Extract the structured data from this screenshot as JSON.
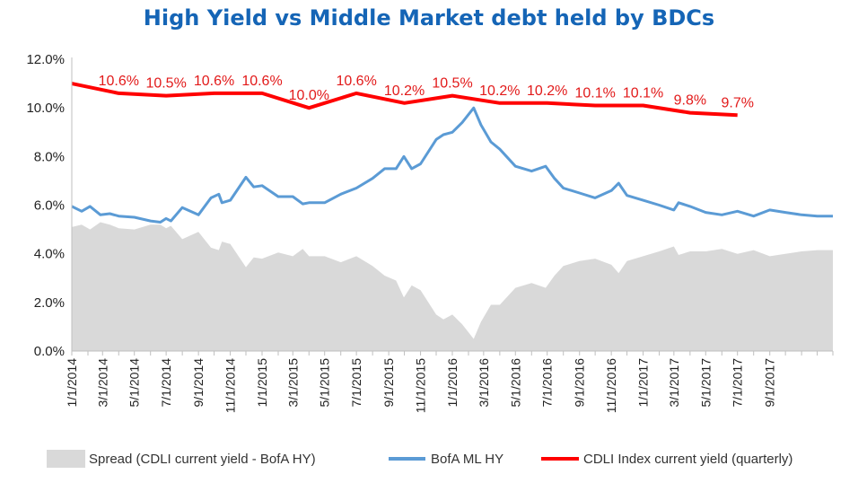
{
  "chart_data": {
    "type": "line",
    "title": "High Yield  vs  Middle Market debt held by BDCs",
    "xlabel": "",
    "ylabel": "",
    "x_range": [
      "2014-01-01",
      "2017-12-31"
    ],
    "ylim": [
      0.0,
      12.0
    ],
    "y_ticks": [
      "0.0%",
      "2.0%",
      "4.0%",
      "6.0%",
      "8.0%",
      "10.0%",
      "12.0%"
    ],
    "x_ticks": [
      "1/1/2014",
      "3/1/2014",
      "5/1/2014",
      "7/1/2014",
      "9/1/2014",
      "11/1/2014",
      "1/1/2015",
      "3/1/2015",
      "5/1/2015",
      "7/1/2015",
      "9/1/2015",
      "11/1/2015",
      "1/1/2016",
      "3/1/2016",
      "5/1/2016",
      "7/1/2016",
      "9/1/2016",
      "11/1/2016",
      "1/1/2017",
      "3/1/2017",
      "5/1/2017",
      "7/1/2017",
      "9/1/2017"
    ],
    "grid": false,
    "legend_position": "bottom",
    "series": [
      {
        "name": "CDLI Index current yield (quarterly)",
        "type": "line",
        "color": "#ff0000",
        "x": [
          "2014-01-01",
          "2014-04-01",
          "2014-07-01",
          "2014-10-01",
          "2015-01-01",
          "2015-04-01",
          "2015-07-01",
          "2015-10-01",
          "2016-01-01",
          "2016-04-01",
          "2016-07-01",
          "2016-10-01",
          "2017-01-01",
          "2017-04-01",
          "2017-07-01"
        ],
        "values": [
          11.0,
          10.6,
          10.5,
          10.6,
          10.6,
          10.0,
          10.6,
          10.2,
          10.5,
          10.2,
          10.2,
          10.1,
          10.1,
          9.8,
          9.7
        ],
        "labels": [
          "",
          "10.6%",
          "10.5%",
          "10.6%",
          "10.6%",
          "10.0%",
          "10.6%",
          "10.2%",
          "10.5%",
          "10.2%",
          "10.2%",
          "10.1%",
          "10.1%",
          "9.8%",
          "9.7%"
        ]
      },
      {
        "name": "BofA ML HY",
        "type": "line",
        "color": "#5b9bd5",
        "x": [
          "2014-01-01",
          "2014-01-20",
          "2014-02-05",
          "2014-02-25",
          "2014-03-15",
          "2014-04-01",
          "2014-05-01",
          "2014-06-01",
          "2014-06-20",
          "2014-07-01",
          "2014-07-10",
          "2014-08-01",
          "2014-09-01",
          "2014-09-25",
          "2014-10-10",
          "2014-10-16",
          "2014-11-01",
          "2014-12-01",
          "2014-12-16",
          "2015-01-01",
          "2015-02-01",
          "2015-03-01",
          "2015-03-20",
          "2015-04-01",
          "2015-05-01",
          "2015-06-01",
          "2015-07-01",
          "2015-08-01",
          "2015-08-24",
          "2015-09-15",
          "2015-09-30",
          "2015-10-15",
          "2015-11-01",
          "2015-12-01",
          "2015-12-15",
          "2016-01-01",
          "2016-01-20",
          "2016-02-11",
          "2016-02-25",
          "2016-03-15",
          "2016-04-01",
          "2016-05-01",
          "2016-06-01",
          "2016-06-28",
          "2016-07-15",
          "2016-08-01",
          "2016-09-01",
          "2016-10-01",
          "2016-11-01",
          "2016-11-15",
          "2016-12-01",
          "2017-01-01",
          "2017-02-01",
          "2017-03-01",
          "2017-03-10",
          "2017-04-01",
          "2017-05-01",
          "2017-06-01",
          "2017-07-01",
          "2017-08-01",
          "2017-09-01",
          "2017-10-01",
          "2017-11-01",
          "2017-12-01",
          "2017-12-31"
        ],
        "values": [
          5.95,
          5.75,
          5.95,
          5.6,
          5.65,
          5.55,
          5.5,
          5.35,
          5.3,
          5.45,
          5.35,
          5.9,
          5.6,
          6.3,
          6.45,
          6.1,
          6.2,
          7.15,
          6.75,
          6.8,
          6.35,
          6.35,
          6.05,
          6.1,
          6.1,
          6.45,
          6.7,
          7.1,
          7.5,
          7.5,
          8.0,
          7.5,
          7.7,
          8.7,
          8.9,
          9.0,
          9.4,
          10.0,
          9.3,
          8.6,
          8.3,
          7.6,
          7.4,
          7.6,
          7.1,
          6.7,
          6.5,
          6.3,
          6.6,
          6.9,
          6.4,
          6.2,
          6.0,
          5.8,
          6.1,
          5.95,
          5.7,
          5.6,
          5.75,
          5.55,
          5.8,
          5.7,
          5.6,
          5.55,
          5.55
        ]
      },
      {
        "name": "Spread (CDLI current yield - BofA HY)",
        "type": "area",
        "color": "#d9d9d9",
        "x": [
          "2014-01-01",
          "2014-01-20",
          "2014-02-05",
          "2014-02-25",
          "2014-03-15",
          "2014-04-01",
          "2014-05-01",
          "2014-06-01",
          "2014-06-20",
          "2014-07-01",
          "2014-07-10",
          "2014-08-01",
          "2014-09-01",
          "2014-09-25",
          "2014-10-10",
          "2014-10-16",
          "2014-11-01",
          "2014-12-01",
          "2014-12-16",
          "2015-01-01",
          "2015-02-01",
          "2015-03-01",
          "2015-03-20",
          "2015-04-01",
          "2015-05-01",
          "2015-06-01",
          "2015-07-01",
          "2015-08-01",
          "2015-08-24",
          "2015-09-15",
          "2015-09-30",
          "2015-10-15",
          "2015-11-01",
          "2015-12-01",
          "2015-12-15",
          "2016-01-01",
          "2016-01-20",
          "2016-02-11",
          "2016-02-25",
          "2016-03-15",
          "2016-04-01",
          "2016-05-01",
          "2016-06-01",
          "2016-06-28",
          "2016-07-15",
          "2016-08-01",
          "2016-09-01",
          "2016-10-01",
          "2016-11-01",
          "2016-11-15",
          "2016-12-01",
          "2017-01-01",
          "2017-02-01",
          "2017-03-01",
          "2017-03-10",
          "2017-04-01",
          "2017-05-01",
          "2017-06-01",
          "2017-07-01",
          "2017-08-01",
          "2017-09-01",
          "2017-10-01",
          "2017-11-01",
          "2017-12-01",
          "2017-12-31"
        ],
        "values": [
          5.1,
          5.2,
          5.0,
          5.3,
          5.2,
          5.05,
          5.0,
          5.2,
          5.2,
          5.05,
          5.15,
          4.6,
          4.9,
          4.25,
          4.15,
          4.5,
          4.4,
          3.45,
          3.85,
          3.8,
          4.05,
          3.9,
          4.2,
          3.9,
          3.9,
          3.65,
          3.9,
          3.5,
          3.1,
          2.9,
          2.2,
          2.7,
          2.5,
          1.5,
          1.3,
          1.5,
          1.1,
          0.5,
          1.2,
          1.9,
          1.9,
          2.6,
          2.8,
          2.6,
          3.1,
          3.5,
          3.7,
          3.8,
          3.55,
          3.2,
          3.7,
          3.9,
          4.1,
          4.3,
          3.95,
          4.1,
          4.1,
          4.2,
          4.0,
          4.15,
          3.9,
          4.0,
          4.1,
          4.15,
          4.15
        ]
      }
    ]
  }
}
